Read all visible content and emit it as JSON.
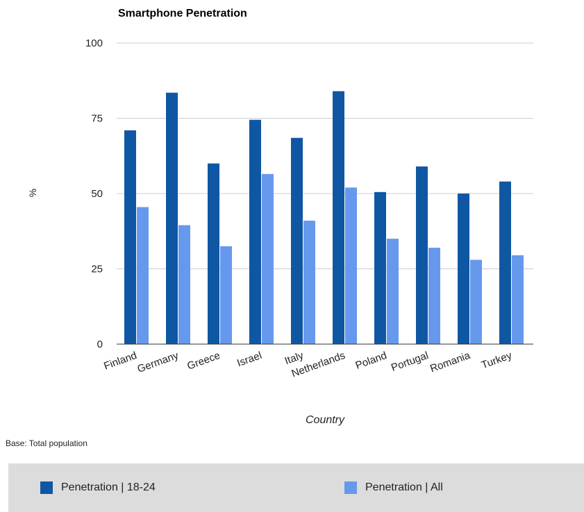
{
  "chart_data": {
    "type": "bar",
    "title": "Smartphone Penetration",
    "xlabel": "Country",
    "ylabel": "%",
    "ylim": [
      0,
      100
    ],
    "yticks": [
      0,
      25,
      50,
      75,
      100
    ],
    "grid": true,
    "legend_position": "bottom",
    "categories": [
      "Finland",
      "Germany",
      "Greece",
      "Israel",
      "Italy",
      "Netherlands",
      "Poland",
      "Portugal",
      "Romania",
      "Turkey"
    ],
    "series": [
      {
        "name": "Penetration | 18-24",
        "color": "#0f57a3",
        "values": [
          71,
          83.5,
          60,
          74.5,
          68.5,
          84,
          50.5,
          59,
          50,
          54
        ]
      },
      {
        "name": "Penetration | All",
        "color": "#6699ee",
        "values": [
          45.5,
          39.5,
          32.5,
          56.5,
          41,
          52,
          35,
          32,
          28,
          29.5
        ]
      }
    ]
  },
  "base_note": "Base: Total population"
}
